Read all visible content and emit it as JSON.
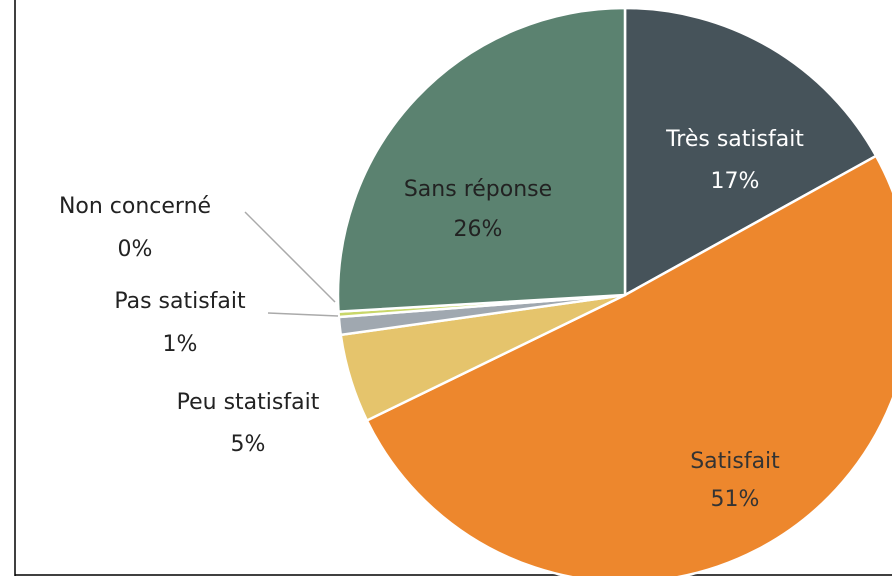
{
  "chart_data": {
    "type": "pie",
    "categories": [
      "Très satisfait",
      "Satisfait",
      "Peu statisfait",
      "Pas satisfait",
      "Non concerné",
      "Sans réponse"
    ],
    "values": [
      17,
      51,
      5,
      1,
      0.3,
      26
    ],
    "value_labels": [
      "17%",
      "51%",
      "5%",
      "1%",
      "0%",
      "26%"
    ],
    "colors": [
      "#46535a",
      "#ed872d",
      "#e5c46c",
      "#a0a8b0",
      "#c9d76a",
      "#5b8270"
    ]
  }
}
